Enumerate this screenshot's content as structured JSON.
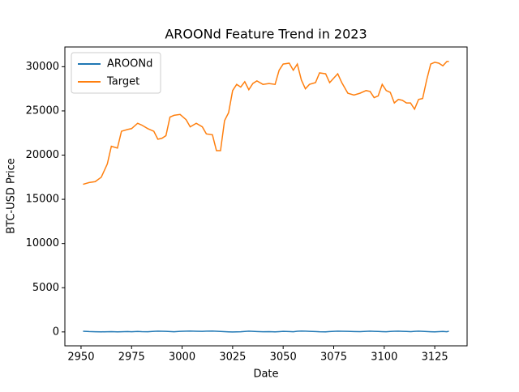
{
  "chart_data": {
    "type": "line",
    "title": "AROONd Feature Trend in 2023",
    "xlabel": "Date",
    "ylabel": "BTC-USD Price",
    "x": [
      2951,
      2954,
      2957,
      2960,
      2963,
      2965,
      2968,
      2970,
      2973,
      2975,
      2978,
      2980,
      2983,
      2986,
      2988,
      2990,
      2992,
      2994,
      2996,
      2999,
      3002,
      3004,
      3007,
      3010,
      3012,
      3015,
      3017,
      3019,
      3021,
      3023,
      3025,
      3027,
      3029,
      3031,
      3033,
      3035,
      3037,
      3040,
      3043,
      3046,
      3048,
      3050,
      3053,
      3055,
      3057,
      3059,
      3061,
      3063,
      3066,
      3068,
      3071,
      3073,
      3075,
      3077,
      3079,
      3082,
      3085,
      3088,
      3091,
      3093,
      3095,
      3097,
      3099,
      3101,
      3103,
      3105,
      3107,
      3109,
      3111,
      3113,
      3115,
      3117,
      3119,
      3121,
      3123,
      3125,
      3127,
      3129,
      3131,
      3132
    ],
    "series": [
      {
        "name": "AROONd",
        "color": "#1f77b4",
        "values": [
          80,
          40,
          20,
          10,
          20,
          30,
          10,
          20,
          40,
          20,
          50,
          30,
          20,
          60,
          90,
          80,
          60,
          40,
          20,
          60,
          90,
          100,
          80,
          60,
          90,
          100,
          80,
          50,
          30,
          10,
          0,
          10,
          20,
          50,
          90,
          60,
          40,
          20,
          30,
          10,
          30,
          60,
          40,
          20,
          80,
          100,
          90,
          70,
          40,
          20,
          10,
          40,
          70,
          90,
          80,
          60,
          40,
          30,
          60,
          90,
          70,
          50,
          30,
          20,
          50,
          80,
          90,
          70,
          50,
          30,
          60,
          90,
          70,
          40,
          20,
          10,
          30,
          50,
          20,
          80
        ]
      },
      {
        "name": "Target",
        "color": "#ff7f0e",
        "values": [
          16700,
          16900,
          17000,
          17500,
          19000,
          21000,
          20800,
          22700,
          22900,
          23000,
          23600,
          23400,
          23000,
          22700,
          21800,
          21900,
          22200,
          24300,
          24500,
          24600,
          24000,
          23200,
          23600,
          23200,
          22400,
          22300,
          20500,
          20500,
          23900,
          24800,
          27300,
          28000,
          27700,
          28300,
          27400,
          28100,
          28400,
          28000,
          28100,
          28000,
          29600,
          30300,
          30400,
          29600,
          30300,
          28500,
          27500,
          28000,
          28200,
          29300,
          29200,
          28200,
          28700,
          29200,
          28200,
          27000,
          26800,
          27000,
          27300,
          27200,
          26500,
          26700,
          28000,
          27300,
          27100,
          25900,
          26300,
          26200,
          25900,
          25900,
          25200,
          26300,
          26400,
          28500,
          30300,
          30500,
          30400,
          30100,
          30600,
          30600
        ]
      }
    ],
    "xlim": [
      2942,
      3141
    ],
    "ylim": [
      -1573,
      32232
    ],
    "xticks": [
      2950,
      2975,
      3000,
      3025,
      3050,
      3075,
      3100,
      3125
    ],
    "yticks": [
      0,
      5000,
      10000,
      15000,
      20000,
      25000,
      30000
    ],
    "legend": "upper left"
  }
}
